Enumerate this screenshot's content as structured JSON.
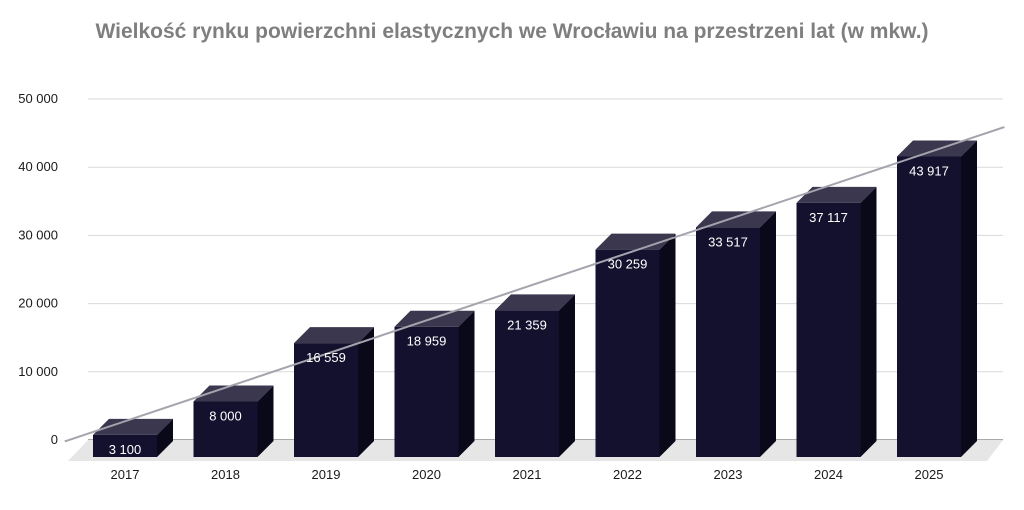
{
  "chart_data": {
    "type": "bar",
    "title": "Wielkość rynku powierzchni elastycznych we Wrocławiu na przestrzeni lat (w mkw.)",
    "xlabel": "",
    "ylabel": "",
    "categories": [
      "2017",
      "2018",
      "2019",
      "2020",
      "2021",
      "2022",
      "2023",
      "2024",
      "2025"
    ],
    "values": [
      3100,
      8000,
      16559,
      18959,
      21359,
      30259,
      33517,
      37117,
      43917
    ],
    "data_labels": [
      "3 100",
      "8 000",
      "16 559",
      "18 959",
      "21 359",
      "30 259",
      "33 517",
      "37 117",
      "43 917"
    ],
    "y_ticks": [
      0,
      10000,
      20000,
      30000,
      40000,
      50000
    ],
    "y_tick_labels": [
      "0",
      "10 000",
      "20 000",
      "30 000",
      "40 000",
      "50 000"
    ],
    "ylim": [
      0,
      50000
    ],
    "grid": true,
    "legend": "none",
    "trendline": "linear",
    "colors": {
      "bar_front": "#13112e",
      "bar_top": "#3a374e",
      "bar_side": "#0a0919",
      "floor": "#e6e6e6",
      "grid": "#d9d9d9",
      "trend": "#a5a3ad",
      "title": "#7f7f7f"
    }
  }
}
